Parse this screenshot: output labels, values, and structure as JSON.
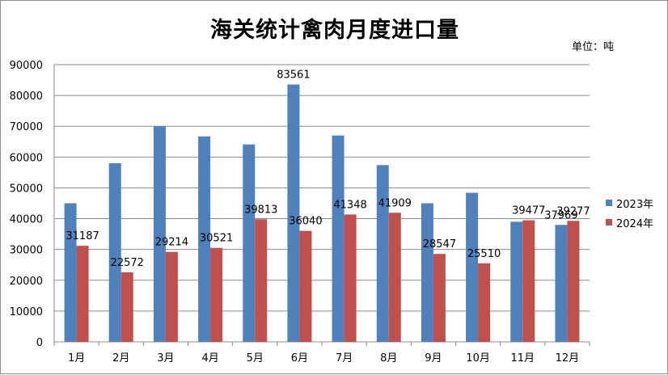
{
  "chart_data": {
    "type": "bar",
    "title": "海关统计禽肉月度进口量",
    "unit_note": "单位：吨",
    "categories": [
      "1月",
      "2月",
      "3月",
      "4月",
      "5月",
      "6月",
      "7月",
      "8月",
      "9月",
      "10月",
      "11月",
      "12月"
    ],
    "series": [
      {
        "name": "2023年",
        "color": "#4f81bd",
        "values": [
          45000,
          58000,
          70000,
          66700,
          64100,
          83561,
          67000,
          57400,
          45000,
          48400,
          39000,
          37969
        ],
        "labels": [
          null,
          null,
          null,
          null,
          null,
          "83561",
          null,
          null,
          null,
          null,
          null,
          "37969"
        ]
      },
      {
        "name": "2024年",
        "color": "#c0504d",
        "values": [
          31187,
          22572,
          29214,
          30521,
          39813,
          36040,
          41348,
          41909,
          28547,
          25510,
          39477,
          39277
        ],
        "labels": [
          "31187",
          "22572",
          "29214",
          "30521",
          "39813",
          "36040",
          "41348",
          "41909",
          "28547",
          "25510",
          "39477",
          "39277"
        ]
      }
    ],
    "yticks": [
      "0",
      "10000",
      "20000",
      "30000",
      "40000",
      "50000",
      "60000",
      "70000",
      "80000",
      "90000"
    ],
    "ylim": [
      0,
      90000
    ],
    "grid": true,
    "legend_position": "right"
  }
}
